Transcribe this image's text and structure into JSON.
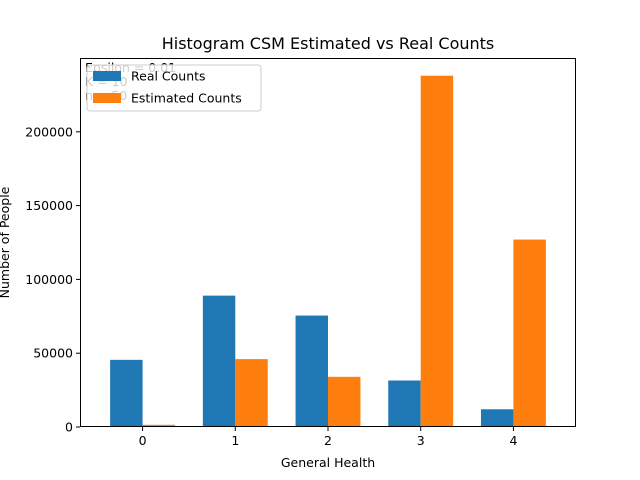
{
  "chart_data": {
    "type": "bar",
    "title": "Histogram CSM Estimated vs Real Counts",
    "xlabel": "General Health",
    "ylabel": "Number of People",
    "categories": [
      "0",
      "1",
      "2",
      "3",
      "4"
    ],
    "series": [
      {
        "name": "Real Counts",
        "color": "#1f77b4",
        "values": [
          45500,
          89000,
          75500,
          31500,
          12000
        ]
      },
      {
        "name": "Estimated Counts",
        "color": "#ff7f0e",
        "values": [
          1500,
          46000,
          34000,
          238000,
          127000
        ]
      }
    ],
    "ylim": [
      0,
      250000
    ],
    "yticks": [
      0,
      50000,
      100000,
      150000,
      200000
    ],
    "ytick_labels": [
      "0",
      "50000",
      "100000",
      "150000",
      "200000"
    ],
    "grid": false,
    "legend": "top-left",
    "annotations": [
      "Epsilon = 0.01",
      "K = 10",
      "n = 50"
    ]
  }
}
